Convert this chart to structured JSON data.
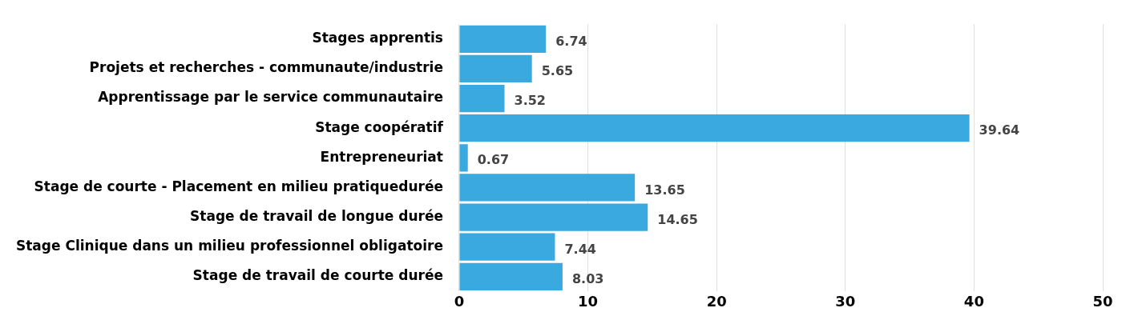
{
  "chart_data": {
    "type": "bar",
    "orientation": "horizontal",
    "categories": [
      "Stages apprentis",
      "Projets et recherches - communaute/industrie",
      "Apprentissage par le service communautaire",
      "Stage coopératif",
      "Entrepreneuriat",
      "Stage de courte - Placement en milieu pratiquedurée",
      "Stage de travail de longue durée",
      "Stage Clinique dans un milieu professionnel obligatoire",
      "Stage de travail de courte durée"
    ],
    "values": [
      6.74,
      5.65,
      3.52,
      39.64,
      0.67,
      13.65,
      14.65,
      7.44,
      8.03
    ],
    "color": "#3aa9e0",
    "xlim": [
      0,
      50
    ],
    "xticks": [
      0,
      10,
      20,
      30,
      40,
      50
    ],
    "grid": "x",
    "data_labels": true,
    "legend": false
  }
}
